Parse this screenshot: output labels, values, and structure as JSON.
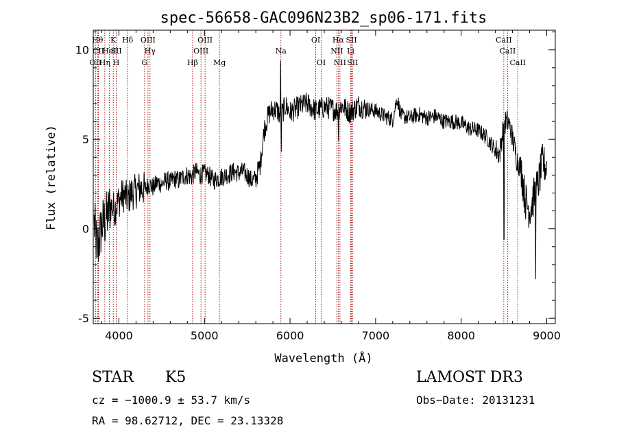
{
  "chart_data": {
    "type": "line",
    "title": "spec-56658-GAC096N23B2_sp06-171.fits",
    "xlabel": "Wavelength (Å)",
    "ylabel": "Flux (relative)",
    "xlim": [
      3700,
      9100
    ],
    "ylim": [
      -5.3,
      11.1
    ],
    "xticks": [
      {
        "value": 4000,
        "label": "4000"
      },
      {
        "value": 5000,
        "label": "5000"
      },
      {
        "value": 6000,
        "label": "6000"
      },
      {
        "value": 7000,
        "label": "7000"
      },
      {
        "value": 8000,
        "label": "8000"
      },
      {
        "value": 9000,
        "label": "9000"
      }
    ],
    "yticks": [
      {
        "value": -5,
        "label": "-5"
      },
      {
        "value": 0,
        "label": "0"
      },
      {
        "value": 5,
        "label": "5"
      },
      {
        "value": 10,
        "label": "10"
      }
    ],
    "spectrum": {
      "name": "flux",
      "x": [
        3710,
        3750,
        3800,
        3850,
        3900,
        3950,
        4000,
        4050,
        4100,
        4150,
        4200,
        4250,
        4300,
        4350,
        4400,
        4450,
        4500,
        4550,
        4600,
        4650,
        4700,
        4750,
        4800,
        4850,
        4900,
        4950,
        5000,
        5050,
        5100,
        5150,
        5200,
        5250,
        5300,
        5350,
        5400,
        5450,
        5500,
        5550,
        5600,
        5650,
        5700,
        5750,
        5800,
        5850,
        5890,
        5950,
        6000,
        6100,
        6200,
        6300,
        6400,
        6500,
        6550,
        6600,
        6700,
        6800,
        6900,
        7000,
        7100,
        7200,
        7250,
        7300,
        7400,
        7500,
        7600,
        7700,
        7800,
        7900,
        8000,
        8100,
        8200,
        8300,
        8400,
        8450,
        8500,
        8550,
        8600,
        8650,
        8700,
        8750,
        8800,
        8850,
        8900,
        8950,
        9000
      ],
      "y": [
        0.3,
        -1.2,
        0.2,
        0.5,
        1.3,
        1.1,
        1.6,
        1.9,
        1.7,
        2.0,
        2.1,
        2.3,
        2.2,
        2.5,
        2.3,
        2.6,
        2.5,
        2.7,
        2.6,
        2.8,
        2.7,
        2.9,
        3.0,
        2.9,
        3.2,
        3.0,
        3.1,
        3.0,
        2.7,
        2.8,
        2.9,
        3.0,
        3.1,
        3.2,
        3.1,
        3.2,
        3.0,
        2.7,
        2.8,
        3.6,
        5.6,
        6.4,
        6.7,
        6.6,
        6.3,
        6.9,
        6.5,
        6.8,
        7.0,
        6.6,
        6.8,
        6.7,
        6.6,
        6.9,
        6.5,
        6.9,
        6.7,
        6.6,
        6.3,
        6.1,
        7.3,
        6.3,
        6.2,
        6.4,
        6.2,
        6.3,
        6.0,
        6.0,
        5.9,
        5.6,
        5.5,
        5.1,
        4.4,
        4.2,
        5.9,
        6.0,
        5.1,
        3.9,
        3.4,
        1.6,
        1.0,
        1.8,
        2.5,
        3.7,
        3.4
      ]
    },
    "spectral_lines": [
      {
        "label": "OII",
        "wavelength": 3727,
        "row": 3
      },
      {
        "label": "Hθ",
        "wavelength": 3750,
        "row": 1
      },
      {
        "label": "CII",
        "wavelength": 3760,
        "row": 2
      },
      {
        "label": "Hη",
        "wavelength": 3835,
        "row": 3
      },
      {
        "label": "HeI",
        "wavelength": 3889,
        "row": 2
      },
      {
        "label": "K",
        "wavelength": 3934,
        "row": 1
      },
      {
        "label": "SII",
        "wavelength": 3969,
        "row": 2
      },
      {
        "label": "H",
        "wavelength": 3970,
        "row": 3
      },
      {
        "label": "Hδ",
        "wavelength": 4102,
        "row": 1
      },
      {
        "label": "G",
        "wavelength": 4300,
        "row": 3
      },
      {
        "label": "OIII",
        "wavelength": 4340,
        "row": 1
      },
      {
        "label": "Hγ",
        "wavelength": 4363,
        "row": 2
      },
      {
        "label": "Hβ",
        "wavelength": 4861,
        "row": 3
      },
      {
        "label": "OIII",
        "wavelength": 4959,
        "row": 2
      },
      {
        "label": "OIII",
        "wavelength": 5007,
        "row": 1
      },
      {
        "label": "Mg",
        "wavelength": 5175,
        "row": 3
      },
      {
        "label": "Na",
        "wavelength": 5893,
        "row": 2
      },
      {
        "label": "OI",
        "wavelength": 6300,
        "row": 1
      },
      {
        "label": "OI",
        "wavelength": 6364,
        "row": 3
      },
      {
        "label": "NII",
        "wavelength": 6548,
        "row": 2
      },
      {
        "label": "Hα",
        "wavelength": 6563,
        "row": 1
      },
      {
        "label": "NII",
        "wavelength": 6583,
        "row": 3
      },
      {
        "label": "Li",
        "wavelength": 6708,
        "row": 2
      },
      {
        "label": "SII",
        "wavelength": 6717,
        "row": 1
      },
      {
        "label": "SII",
        "wavelength": 6731,
        "row": 3
      },
      {
        "label": "CaII",
        "wavelength": 8498,
        "row": 1
      },
      {
        "label": "CaII",
        "wavelength": 8542,
        "row": 2
      },
      {
        "label": "CaII",
        "wavelength": 8662,
        "row": 3
      }
    ],
    "line_color": "#a01010"
  },
  "info": {
    "object_type": "STAR",
    "subclass": "K5",
    "survey": "LAMOST DR3",
    "cz": "cz = −1000.9 ± 53.7 km/s",
    "obs_date": "Obs−Date: 20131231",
    "coords": "RA =  98.62712, DEC =  23.13328"
  }
}
